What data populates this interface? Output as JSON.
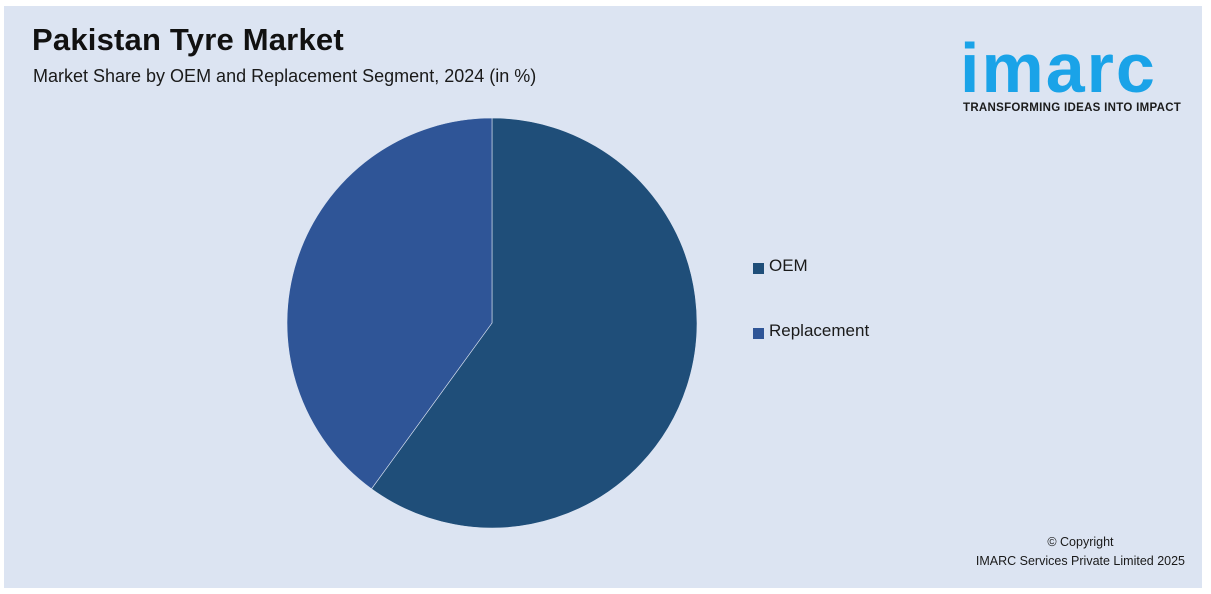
{
  "header": {
    "title": "Pakistan Tyre Market",
    "subtitle": "Market Share by OEM and Replacement Segment, 2024 (in %)"
  },
  "logo": {
    "wordmark": "imarc",
    "tagline": "TRANSFORMING IDEAS INTO IMPACT",
    "color": "#1aa3e8"
  },
  "chart_data": {
    "type": "pie",
    "title": "Pakistan Tyre Market",
    "subtitle": "Market Share by OEM and Replacement Segment, 2024 (in %)",
    "categories": [
      "OEM",
      "Replacement"
    ],
    "values": [
      60,
      40
    ],
    "colors": [
      "#1f4e79",
      "#2f5597"
    ],
    "legend_position": "right",
    "start_angle_deg": 0,
    "direction": "clockwise"
  },
  "legend": [
    {
      "label": "OEM",
      "color": "#1f4e79"
    },
    {
      "label": "Replacement",
      "color": "#2f5597"
    }
  ],
  "footer": {
    "copyright_line1": "© Copyright",
    "copyright_line2": "IMARC Services Private Limited 2025"
  }
}
